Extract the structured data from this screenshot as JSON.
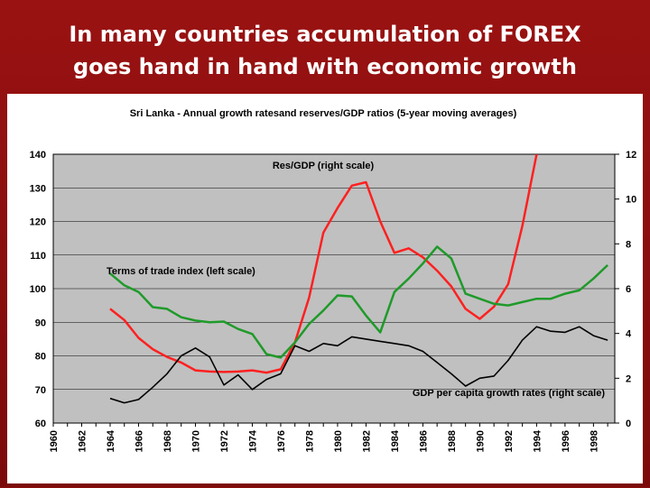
{
  "slide": {
    "title_line1": "In many countries accumulation of FOREX",
    "title_line2": "goes hand in hand with economic growth"
  },
  "colors": {
    "slide_background": "#8b0d0d",
    "plot_background": "#c0c0c0",
    "reserves_series": "#ff2020",
    "terms_of_trade_series": "#1f9a2a",
    "gdp_series": "#000000"
  },
  "chart_data": {
    "type": "line",
    "title": "Sri Lanka  - Annual growth ratesand reserves/GDP ratios (5-year moving averages)",
    "x_ticks": [
      "1960",
      "1962",
      "1964",
      "1966",
      "1968",
      "1970",
      "1972",
      "1974",
      "1976",
      "1978",
      "1980",
      "1982",
      "1984",
      "1986",
      "1988",
      "1990",
      "1992",
      "1994",
      "1996",
      "1998"
    ],
    "xlim": [
      1960,
      1999.5
    ],
    "left_axis": {
      "ylim": [
        60,
        140
      ],
      "ticks": [
        "60",
        "70",
        "80",
        "90",
        "100",
        "110",
        "120",
        "130",
        "140"
      ]
    },
    "right_axis": {
      "ylim": [
        0,
        12
      ],
      "ticks": [
        "0",
        "2",
        "4",
        "6",
        "8",
        "10",
        "12"
      ]
    },
    "grid": "horizontal",
    "series": [
      {
        "name": "Res/GDP (right scale)",
        "axis": "right",
        "color": "#ff2020",
        "x": [
          1964,
          1965,
          1966,
          1967,
          1968,
          1969,
          1970,
          1971,
          1972,
          1973,
          1974,
          1975,
          1976,
          1977,
          1978,
          1979,
          1980,
          1981,
          1982,
          1983,
          1984,
          1985,
          1986,
          1987,
          1988,
          1989,
          1990,
          1991,
          1992,
          1993,
          1994
        ],
        "values": [
          5.1,
          4.6,
          3.8,
          3.3,
          2.95,
          2.7,
          2.35,
          2.3,
          2.28,
          2.3,
          2.35,
          2.25,
          2.4,
          3.6,
          5.6,
          8.5,
          9.6,
          10.6,
          10.75,
          9.0,
          7.6,
          7.8,
          7.4,
          6.8,
          6.1,
          5.1,
          4.65,
          5.2,
          6.2,
          8.8,
          12.0
        ]
      },
      {
        "name": "Terms of trade index (left scale)",
        "axis": "left",
        "color": "#1f9a2a",
        "x": [
          1964,
          1965,
          1966,
          1967,
          1968,
          1969,
          1970,
          1971,
          1972,
          1973,
          1974,
          1975,
          1976,
          1977,
          1978,
          1979,
          1980,
          1981,
          1982,
          1983,
          1984,
          1985,
          1986,
          1987,
          1988,
          1989,
          1990,
          1991,
          1992,
          1993,
          1994,
          1995,
          1996,
          1997,
          1998,
          1999
        ],
        "values": [
          104.5,
          101,
          99,
          94.5,
          94,
          91.5,
          90.5,
          90,
          90.2,
          88,
          86.5,
          80.5,
          79.5,
          84,
          89.5,
          93.5,
          98,
          97.7,
          92,
          87,
          99,
          103,
          107.5,
          112.5,
          109,
          98.5,
          97,
          95.5,
          95,
          96,
          97,
          97,
          98.5,
          99.5,
          103,
          107
        ]
      },
      {
        "name": "GDP per capita growth rates (right scale)",
        "axis": "right",
        "color": "#000000",
        "x": [
          1964,
          1965,
          1966,
          1967,
          1968,
          1969,
          1970,
          1971,
          1972,
          1973,
          1974,
          1975,
          1976,
          1977,
          1978,
          1979,
          1980,
          1981,
          1982,
          1983,
          1984,
          1985,
          1986,
          1987,
          1988,
          1989,
          1990,
          1991,
          1992,
          1993,
          1994,
          1995,
          1996,
          1997,
          1998,
          1999
        ],
        "values": [
          1.1,
          0.9,
          1.05,
          1.6,
          2.2,
          3.0,
          3.35,
          2.95,
          1.7,
          2.15,
          1.5,
          1.95,
          2.2,
          3.45,
          3.2,
          3.55,
          3.45,
          3.85,
          3.75,
          3.65,
          3.55,
          3.45,
          3.2,
          2.7,
          2.2,
          1.65,
          2.0,
          2.1,
          2.8,
          3.7,
          4.3,
          4.1,
          4.05,
          4.3,
          3.9,
          3.7
        ]
      }
    ]
  }
}
